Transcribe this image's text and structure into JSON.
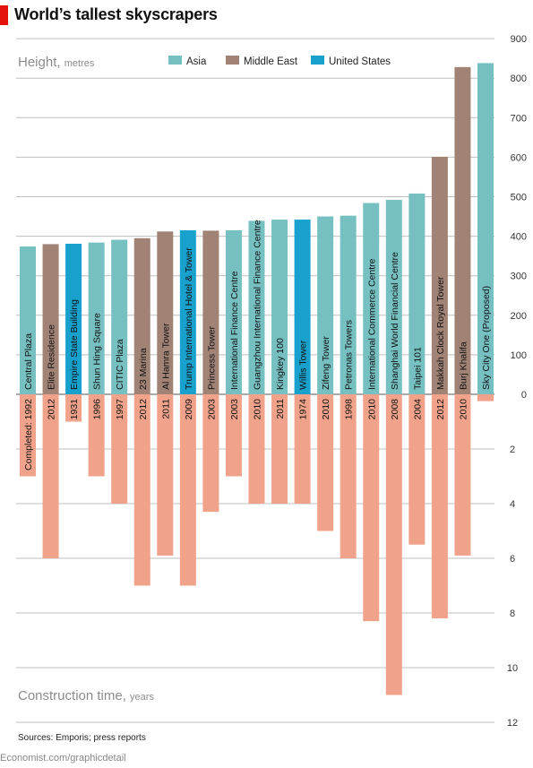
{
  "title": "World’s tallest skyscrapers",
  "source": "Sources: Emporis; press reports",
  "footer": "Economist.com/graphicdetail",
  "colors": {
    "Asia": "#76c0c1",
    "Middle East": "#a18376",
    "United States": "#18a1cd",
    "construction": "#f0a38a",
    "grid": "#bfbfbf",
    "axisText": "#333333",
    "labelGray": "#8c8c8c"
  },
  "chart_data": {
    "type": "bar",
    "legend": [
      "Asia",
      "Middle East",
      "United States"
    ],
    "top_panel": {
      "label_main": "Height,",
      "label_unit": "metres",
      "ylim": [
        0,
        900
      ],
      "ticks": [
        "0",
        "100",
        "200",
        "300",
        "400",
        "500",
        "600",
        "700",
        "800",
        "900"
      ]
    },
    "bottom_panel": {
      "label_main": "Construction time,",
      "label_unit": "years",
      "ylim": [
        0,
        12
      ],
      "ticks": [
        "0",
        "2",
        "4",
        "6",
        "8",
        "10",
        "12"
      ]
    },
    "completed_prefix": "Completed:",
    "buildings": [
      {
        "name": "Central Plaza",
        "region": "Asia",
        "height": 374,
        "completed": "1992",
        "years": 3
      },
      {
        "name": "Elite Residence",
        "region": "Middle East",
        "height": 380,
        "completed": "2012",
        "years": 6
      },
      {
        "name": "Empire State Building",
        "region": "United States",
        "height": 381,
        "completed": "1931",
        "years": 1
      },
      {
        "name": "Shun Hing Square",
        "region": "Asia",
        "height": 384,
        "completed": "1996",
        "years": 3
      },
      {
        "name": "CITIC Plaza",
        "region": "Asia",
        "height": 391,
        "completed": "1997",
        "years": 4
      },
      {
        "name": "23 Marina",
        "region": "Middle East",
        "height": 395,
        "completed": "2012",
        "years": 7
      },
      {
        "name": "Al Hamra Tower",
        "region": "Middle East",
        "height": 412,
        "completed": "2011",
        "years": 5.9
      },
      {
        "name": "Trump International Hotel & Tower",
        "region": "United States",
        "height": 415,
        "completed": "2009",
        "years": 7
      },
      {
        "name": "Princess Tower",
        "region": "Middle East",
        "height": 414,
        "completed": "2003",
        "years": 4.3
      },
      {
        "name": "International Finance Centre",
        "region": "Asia",
        "height": 415,
        "completed": "2003",
        "years": 3
      },
      {
        "name": "Guangzhou International Finance Centre",
        "region": "Asia",
        "height": 439,
        "completed": "2010",
        "years": 4
      },
      {
        "name": "Kingkey 100",
        "region": "Asia",
        "height": 442,
        "completed": "2011",
        "years": 4
      },
      {
        "name": "Willis Tower",
        "region": "United States",
        "height": 442,
        "completed": "1974",
        "years": 4
      },
      {
        "name": "Zifeng Tower",
        "region": "Asia",
        "height": 450,
        "completed": "2010",
        "years": 5
      },
      {
        "name": "Petronas Towers",
        "region": "Asia",
        "height": 452,
        "completed": "1998",
        "years": 6
      },
      {
        "name": "International Commerce Centre",
        "region": "Asia",
        "height": 484,
        "completed": "2010",
        "years": 8.3
      },
      {
        "name": "Shanghai World Financial Centre",
        "region": "Asia",
        "height": 492,
        "completed": "2008",
        "years": 11
      },
      {
        "name": "Taipei 101",
        "region": "Asia",
        "height": 508,
        "completed": "2004",
        "years": 5.5
      },
      {
        "name": "Makkah Clock Royal Tower",
        "region": "Middle East",
        "height": 601,
        "completed": "2012",
        "years": 8.2
      },
      {
        "name": "Burj Khalifa",
        "region": "Middle East",
        "height": 828,
        "completed": "2010",
        "years": 5.9
      },
      {
        "name": "Sky City One (Proposed)",
        "region": "Asia",
        "height": 838,
        "completed": "",
        "years": 0.25
      }
    ]
  }
}
